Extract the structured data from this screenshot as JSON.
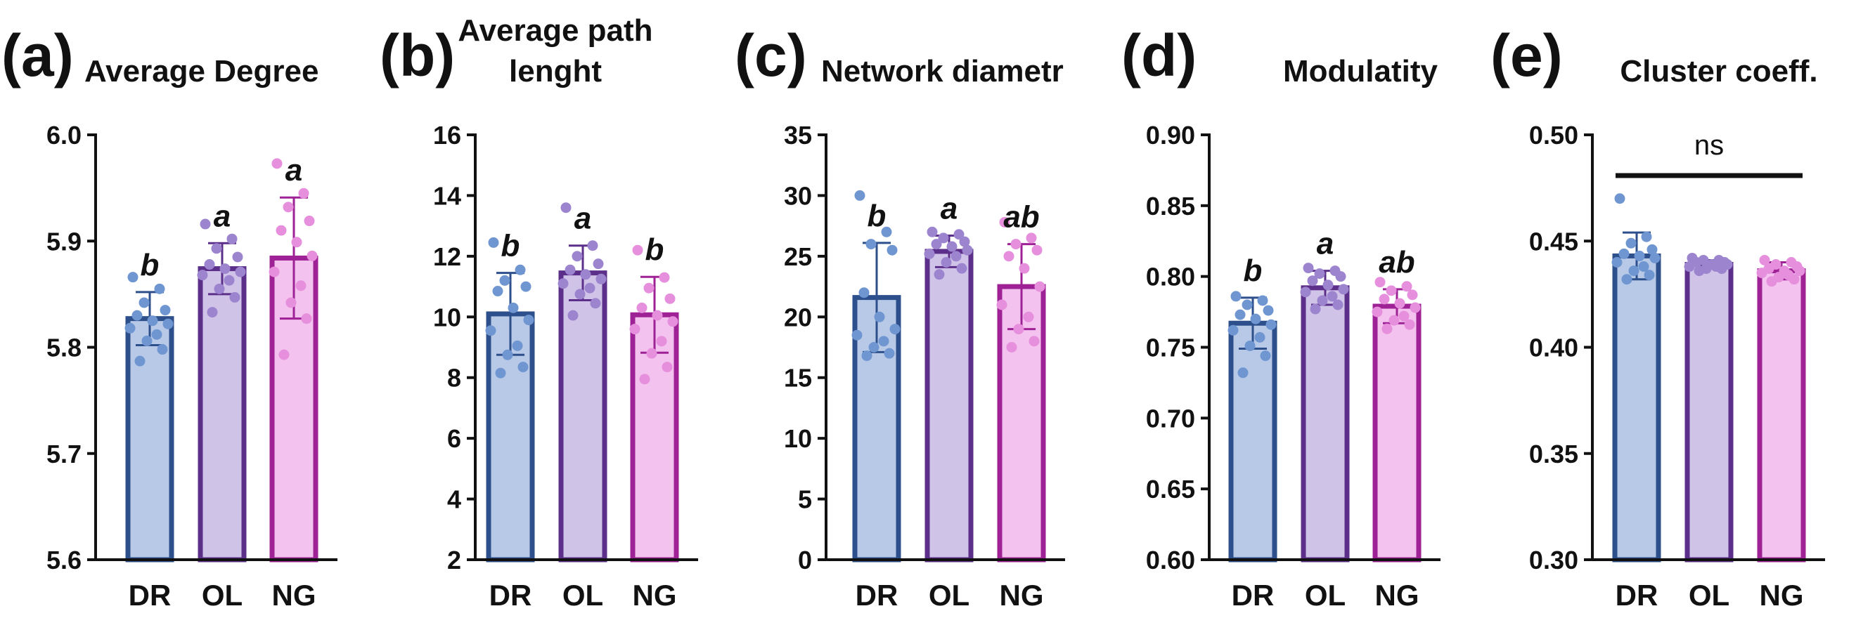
{
  "colors": {
    "DR": {
      "fill": "#b7c9e6",
      "edge": "#2d4f8c",
      "dot": "#6f96d1"
    },
    "OL": {
      "fill": "#d0c3e8",
      "edge": "#5b2f8a",
      "dot": "#9d84cf"
    },
    "NG": {
      "fill": "#f3c2ee",
      "edge": "#9e2196",
      "dot": "#e68fdc"
    }
  },
  "chart_data": [
    {
      "type": "bar",
      "panel_label": "(a)",
      "title_lines": [
        "Average Degree"
      ],
      "categories": [
        "DR",
        "OL",
        "NG"
      ],
      "ylim": [
        5.6,
        6.0
      ],
      "yticks": [
        5.6,
        5.7,
        5.8,
        5.9,
        6.0
      ],
      "ytick_labels": [
        "5.6",
        "5.7",
        "5.8",
        "5.9",
        "6.0"
      ],
      "means": [
        5.827,
        5.874,
        5.884
      ],
      "sd": [
        0.025,
        0.024,
        0.057
      ],
      "points": [
        [
          5.866,
          5.855,
          5.842,
          5.835,
          5.83,
          5.825,
          5.822,
          5.818,
          5.812,
          5.806,
          5.798,
          5.787
        ],
        [
          5.916,
          5.902,
          5.893,
          5.885,
          5.878,
          5.874,
          5.871,
          5.868,
          5.863,
          5.855,
          5.847,
          5.833
        ],
        [
          5.973,
          5.945,
          5.932,
          5.919,
          5.91,
          5.899,
          5.886,
          5.871,
          5.858,
          5.842,
          5.827,
          5.793
        ]
      ],
      "significance": [
        "b",
        "a",
        "a"
      ],
      "ns_bracket": ""
    },
    {
      "type": "bar",
      "panel_label": "(b)",
      "title_lines": [
        "Average path",
        "lenght"
      ],
      "categories": [
        "DR",
        "OL",
        "NG"
      ],
      "ylim": [
        2,
        16
      ],
      "yticks": [
        2,
        4,
        6,
        8,
        10,
        12,
        14,
        16
      ],
      "ytick_labels": [
        "2",
        "4",
        "6",
        "8",
        "10",
        "12",
        "14",
        "16"
      ],
      "means": [
        10.1,
        11.45,
        10.07
      ],
      "sd": [
        1.35,
        0.9,
        1.25
      ],
      "points": [
        [
          12.45,
          11.55,
          11.2,
          11.0,
          10.85,
          10.3,
          9.9,
          9.55,
          9.05,
          8.75,
          8.35,
          8.15
        ],
        [
          13.6,
          12.35,
          12.0,
          11.75,
          11.55,
          11.4,
          11.25,
          11.1,
          10.95,
          10.75,
          10.45,
          10.05
        ],
        [
          12.2,
          11.3,
          10.95,
          10.6,
          10.3,
          10.05,
          9.85,
          9.6,
          9.2,
          8.8,
          8.35,
          7.95
        ]
      ],
      "significance": [
        "b",
        "a",
        "b"
      ],
      "ns_bracket": ""
    },
    {
      "type": "bar",
      "panel_label": "(c)",
      "title_lines": [
        "Network diametr"
      ],
      "categories": [
        "DR",
        "OL",
        "NG"
      ],
      "ylim": [
        0,
        35
      ],
      "yticks": [
        0,
        5,
        10,
        15,
        20,
        25,
        30,
        35
      ],
      "ytick_labels": [
        "0",
        "5",
        "10",
        "15",
        "20",
        "25",
        "30",
        "35"
      ],
      "means": [
        21.6,
        25.4,
        22.5
      ],
      "sd": [
        4.5,
        1.3,
        3.5
      ],
      "points": [
        [
          30,
          27,
          26,
          25.5,
          22,
          20,
          19,
          18.5,
          18,
          17.5,
          17,
          16.8
        ],
        [
          27,
          26.8,
          26.5,
          26.2,
          26,
          25.8,
          25.5,
          25.2,
          25,
          24.5,
          24,
          23.5
        ],
        [
          27.8,
          26.5,
          26,
          25.5,
          25,
          24,
          22.5,
          21,
          20,
          19,
          18,
          17.5
        ]
      ],
      "significance": [
        "b",
        "a",
        "ab"
      ],
      "ns_bracket": ""
    },
    {
      "type": "bar",
      "panel_label": "(d)",
      "title_lines": [
        "Modulatity"
      ],
      "categories": [
        "DR",
        "OL",
        "NG"
      ],
      "ylim": [
        0.6,
        0.9
      ],
      "yticks": [
        0.6,
        0.65,
        0.7,
        0.75,
        0.8,
        0.85,
        0.9
      ],
      "ytick_labels": [
        "0.60",
        "0.65",
        "0.70",
        "0.75",
        "0.80",
        "0.85",
        "0.90"
      ],
      "means": [
        0.767,
        0.792,
        0.779
      ],
      "sd": [
        0.018,
        0.012,
        0.012
      ],
      "points": [
        [
          0.786,
          0.783,
          0.78,
          0.776,
          0.773,
          0.77,
          0.766,
          0.762,
          0.757,
          0.751,
          0.744,
          0.732
        ],
        [
          0.806,
          0.804,
          0.802,
          0.8,
          0.797,
          0.794,
          0.791,
          0.789,
          0.786,
          0.783,
          0.78,
          0.777
        ],
        [
          0.796,
          0.793,
          0.79,
          0.787,
          0.784,
          0.781,
          0.778,
          0.775,
          0.772,
          0.769,
          0.766,
          0.763
        ]
      ],
      "significance": [
        "b",
        "a",
        "ab"
      ],
      "ns_bracket": ""
    },
    {
      "type": "bar",
      "panel_label": "(e)",
      "title_lines": [
        "Cluster coeff."
      ],
      "categories": [
        "DR",
        "OL",
        "NG"
      ],
      "ylim": [
        0.3,
        0.5
      ],
      "yticks": [
        0.3,
        0.35,
        0.4,
        0.45,
        0.5
      ],
      "ytick_labels": [
        "0.30",
        "0.35",
        "0.40",
        "0.45",
        "0.50"
      ],
      "means": [
        0.443,
        0.439,
        0.436
      ],
      "sd": [
        0.011,
        0.002,
        0.004
      ],
      "points": [
        [
          0.47,
          0.452,
          0.449,
          0.446,
          0.444,
          0.443,
          0.442,
          0.44,
          0.438,
          0.436,
          0.434,
          0.432
        ],
        [
          0.442,
          0.441,
          0.441,
          0.44,
          0.44,
          0.439,
          0.439,
          0.438,
          0.438,
          0.437,
          0.437,
          0.436
        ],
        [
          0.441,
          0.44,
          0.439,
          0.438,
          0.437,
          0.436,
          0.436,
          0.435,
          0.434,
          0.433,
          0.432,
          0.431
        ]
      ],
      "significance": [
        "",
        "",
        ""
      ],
      "ns_bracket": "ns"
    }
  ]
}
